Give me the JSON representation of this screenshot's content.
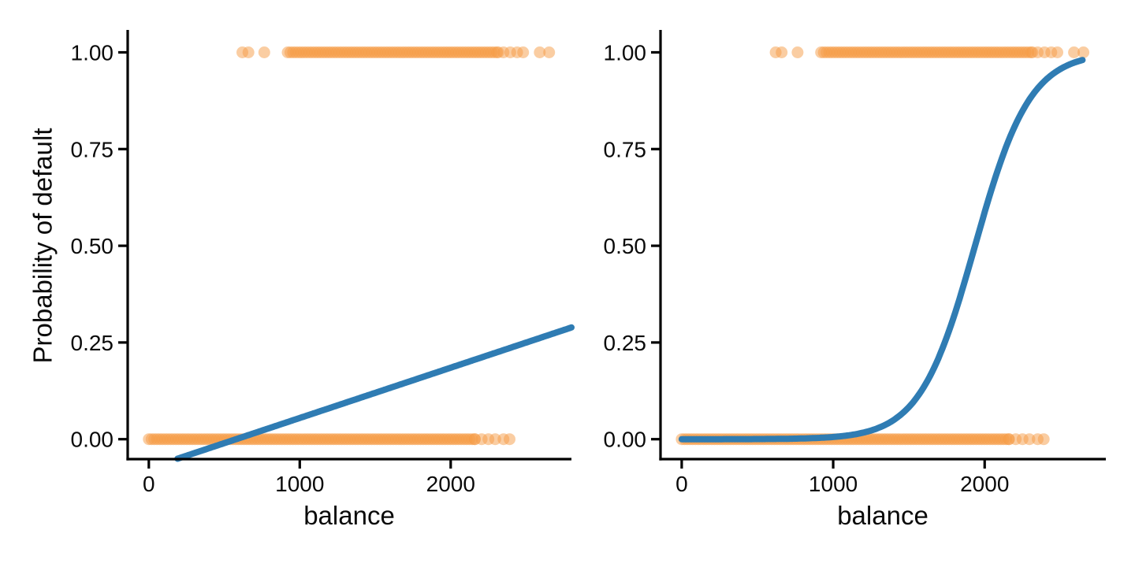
{
  "figure": {
    "background": "#ffffff",
    "description": "Two-panel scatter of default probability vs credit card balance with linear fit (left) and logistic regression fit (right)"
  },
  "colors": {
    "point_fill": "#f59c45",
    "point_opacity": 0.5,
    "fit_line": "#2f7cb3",
    "axis": "#000000",
    "tick_text": "#0a0a0a"
  },
  "chart_data": {
    "type": "scatter",
    "layout": "two-panel",
    "shared": {
      "xlabel": "balance",
      "ylabel": "Probability of default",
      "xlim": [
        -140,
        2800
      ],
      "ylim": [
        -0.0515,
        1.058
      ],
      "xticks": {
        "values": [
          0,
          1000,
          2000
        ],
        "labels": [
          "0",
          "1000",
          "2000"
        ]
      },
      "yticks": {
        "values": [
          0,
          0.25,
          0.5,
          0.75,
          1
        ],
        "labels": [
          "0.00",
          "0.25",
          "0.50",
          "0.75",
          "1.00"
        ]
      },
      "grid": false,
      "legend": null,
      "points": {
        "dense_step": 18,
        "rows": [
          {
            "name": "default-no",
            "y": 0,
            "dense_bands": [
              [
                0,
                2160
              ]
            ],
            "sparse": [
              2205,
              2250,
              2295,
              2350,
              2390
            ]
          },
          {
            "name": "default-yes",
            "y": 1,
            "dense_bands": [
              [
                920,
                2315
              ]
            ],
            "sparse": [
              620,
              660,
              765,
              2350,
              2395,
              2440,
              2480,
              2590,
              2652
            ]
          }
        ]
      }
    },
    "panels": [
      {
        "name": "linear-probability-model",
        "fit": {
          "model": "linear",
          "intercept": -0.0752,
          "slope": 0.00013,
          "x_range": [
            -140,
            2800
          ],
          "clip_to_ylim": true
        }
      },
      {
        "name": "logistic-regression-model",
        "fit": {
          "model": "logistic",
          "b0": -10.65,
          "b1": 0.0055,
          "x_range": [
            0,
            2654
          ]
        }
      }
    ]
  }
}
